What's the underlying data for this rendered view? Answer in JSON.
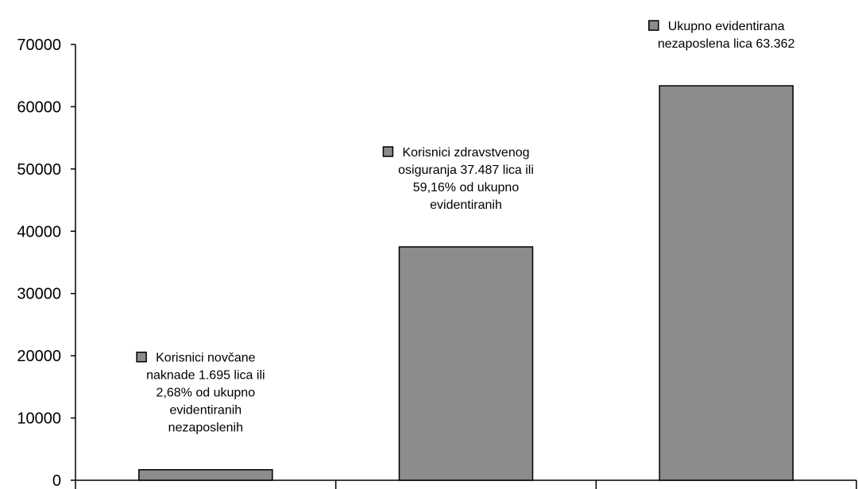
{
  "chart_data": {
    "type": "bar",
    "categories": [
      "",
      "",
      ""
    ],
    "values": [
      1695,
      37487,
      63362
    ],
    "bar_color": "#8c8c8c",
    "ylim": [
      0,
      70000
    ],
    "yticks": [
      0,
      10000,
      20000,
      30000,
      40000,
      50000,
      60000,
      70000
    ],
    "grid": false,
    "data_labels": [
      [
        "Korisnici novčane",
        "naknade 1.695 lica ili",
        "2,68% od ukupno",
        "evidentiranih",
        "nezaposlenih"
      ],
      [
        "Korisnici zdravstvenog",
        "osiguranja 37.487 lica ili",
        "59,16% od ukupno",
        "evidentiranih"
      ],
      [
        "Ukupno evidentirana",
        "nezaposlena lica 63.362"
      ]
    ]
  }
}
